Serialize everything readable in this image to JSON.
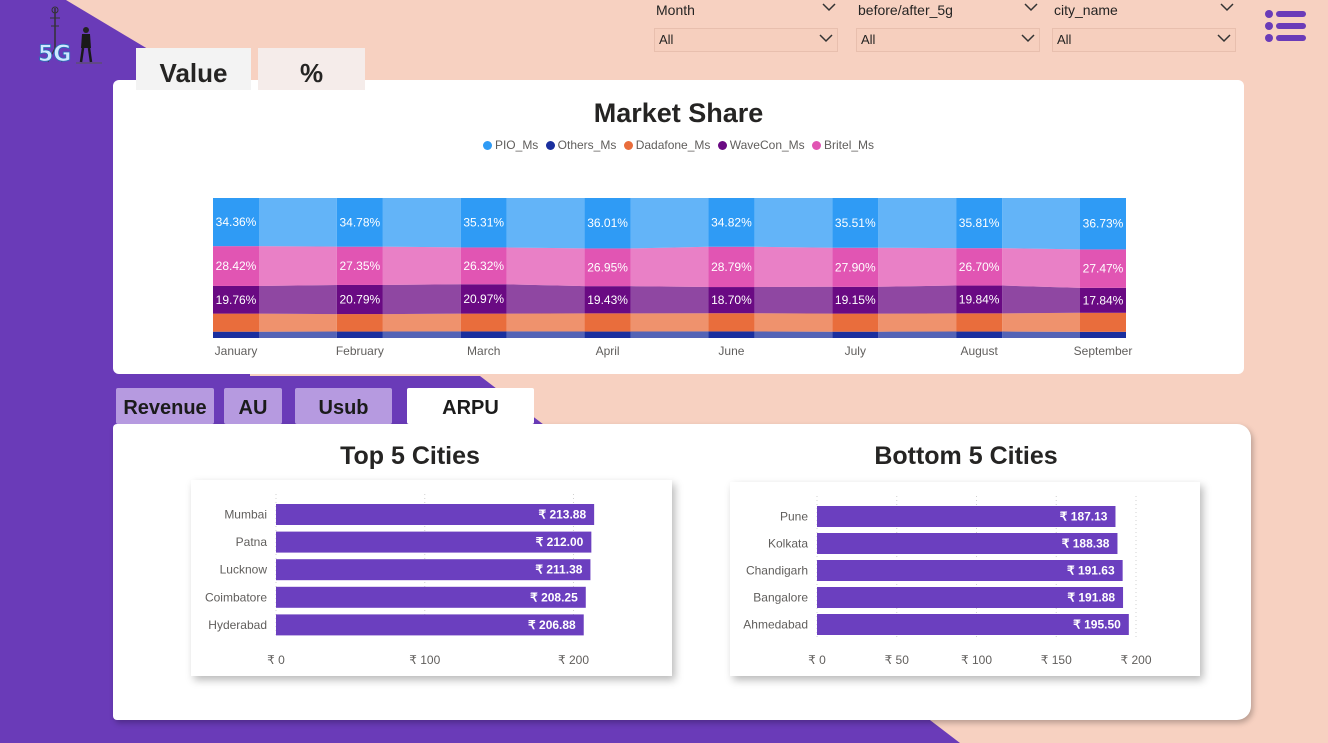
{
  "colors": {
    "purple_bg": "#6a3bb8",
    "peach_bg": "#f7d1c1",
    "bar_purple": "#6b3fbf",
    "tab_inactive": "#b69ae0"
  },
  "logo": {
    "icon": "5g-tower-logo-icon",
    "text": "5G"
  },
  "filters": [
    {
      "label": "Month",
      "value": "All"
    },
    {
      "label": "before/after_5g",
      "value": "All"
    },
    {
      "label": "city_name",
      "value": "All"
    }
  ],
  "menu_icon": "hamburger-menu-icon",
  "toggles": {
    "value_label": "Value",
    "percent_label": "%"
  },
  "market_share": {
    "title": "Market Share",
    "legend": [
      {
        "name": "PIO_Ms",
        "color": "#2f9bf5"
      },
      {
        "name": "Others_Ms",
        "color": "#1a2f9e"
      },
      {
        "name": "Dadafone_Ms",
        "color": "#e96d3c"
      },
      {
        "name": "WaveCon_Ms",
        "color": "#6a0a83"
      },
      {
        "name": "Britel_Ms",
        "color": "#e155b3"
      }
    ]
  },
  "metric_tabs": [
    {
      "label": "Revenue",
      "active": false
    },
    {
      "label": "AU",
      "active": false
    },
    {
      "label": "Usub",
      "active": false
    },
    {
      "label": "ARPU",
      "active": true
    }
  ],
  "chart_data": [
    {
      "type": "area",
      "title": "Market Share",
      "stacked": "100%",
      "categories": [
        "January",
        "February",
        "March",
        "April",
        "June",
        "July",
        "August",
        "September"
      ],
      "series": [
        {
          "name": "Others_Ms",
          "values": [
            4.5,
            4.6,
            4.7,
            4.6,
            4.7,
            4.5,
            4.6,
            4.4
          ]
        },
        {
          "name": "Dadafone_Ms",
          "values": [
            12.9,
            12.5,
            12.7,
            13.0,
            13.0,
            12.9,
            13.0,
            13.6
          ]
        },
        {
          "name": "WaveCon_Ms",
          "values": [
            19.76,
            20.79,
            20.97,
            19.43,
            18.7,
            19.15,
            19.84,
            17.84
          ]
        },
        {
          "name": "Britel_Ms",
          "values": [
            28.42,
            27.35,
            26.32,
            26.95,
            28.79,
            27.9,
            26.7,
            27.47
          ]
        },
        {
          "name": "PIO_Ms",
          "values": [
            34.36,
            34.78,
            35.31,
            36.01,
            34.82,
            35.51,
            35.81,
            36.73
          ]
        }
      ],
      "data_labels": {
        "PIO_Ms": [
          "34.36%",
          "34.78%",
          "35.31%",
          "36.01%",
          "34.82%",
          "35.51%",
          "35.81%",
          "36.73%"
        ],
        "Britel_Ms": [
          "28.42%",
          "27.35%",
          "26.32%",
          "26.95%",
          "28.79%",
          "27.90%",
          "26.70%",
          "27.47%"
        ],
        "WaveCon_Ms": [
          "19.76%",
          "20.79%",
          "20.97%",
          "19.43%",
          "18.70%",
          "19.15%",
          "19.84%",
          "17.84%"
        ]
      },
      "legend_position": "top-center"
    },
    {
      "type": "bar",
      "orientation": "horizontal",
      "title": "Top 5 Cities",
      "categories": [
        "Mumbai",
        "Patna",
        "Lucknow",
        "Coimbatore",
        "Hyderabad"
      ],
      "values": [
        213.88,
        212.0,
        211.38,
        208.25,
        206.88
      ],
      "value_labels": [
        "₹ 213.88",
        "₹ 212.00",
        "₹ 211.38",
        "₹ 208.25",
        "₹ 206.88"
      ],
      "xlim": [
        0,
        240
      ],
      "xticks": [
        0,
        100,
        200
      ],
      "xtick_labels": [
        "₹ 0",
        "₹ 100",
        "₹ 200"
      ],
      "grid": true
    },
    {
      "type": "bar",
      "orientation": "horizontal",
      "title": "Bottom 5 Cities",
      "categories": [
        "Pune",
        "Kolkata",
        "Chandigarh",
        "Bangalore",
        "Ahmedabad"
      ],
      "values": [
        187.13,
        188.38,
        191.63,
        191.88,
        195.5
      ],
      "value_labels": [
        "₹ 187.13",
        "₹ 188.38",
        "₹ 191.63",
        "₹ 191.88",
        "₹ 195.50"
      ],
      "xlim": [
        0,
        200
      ],
      "xticks": [
        0,
        50,
        100,
        150,
        200
      ],
      "xtick_labels": [
        "₹ 0",
        "₹ 50",
        "₹ 100",
        "₹ 150",
        "₹ 200"
      ],
      "grid": true
    }
  ]
}
